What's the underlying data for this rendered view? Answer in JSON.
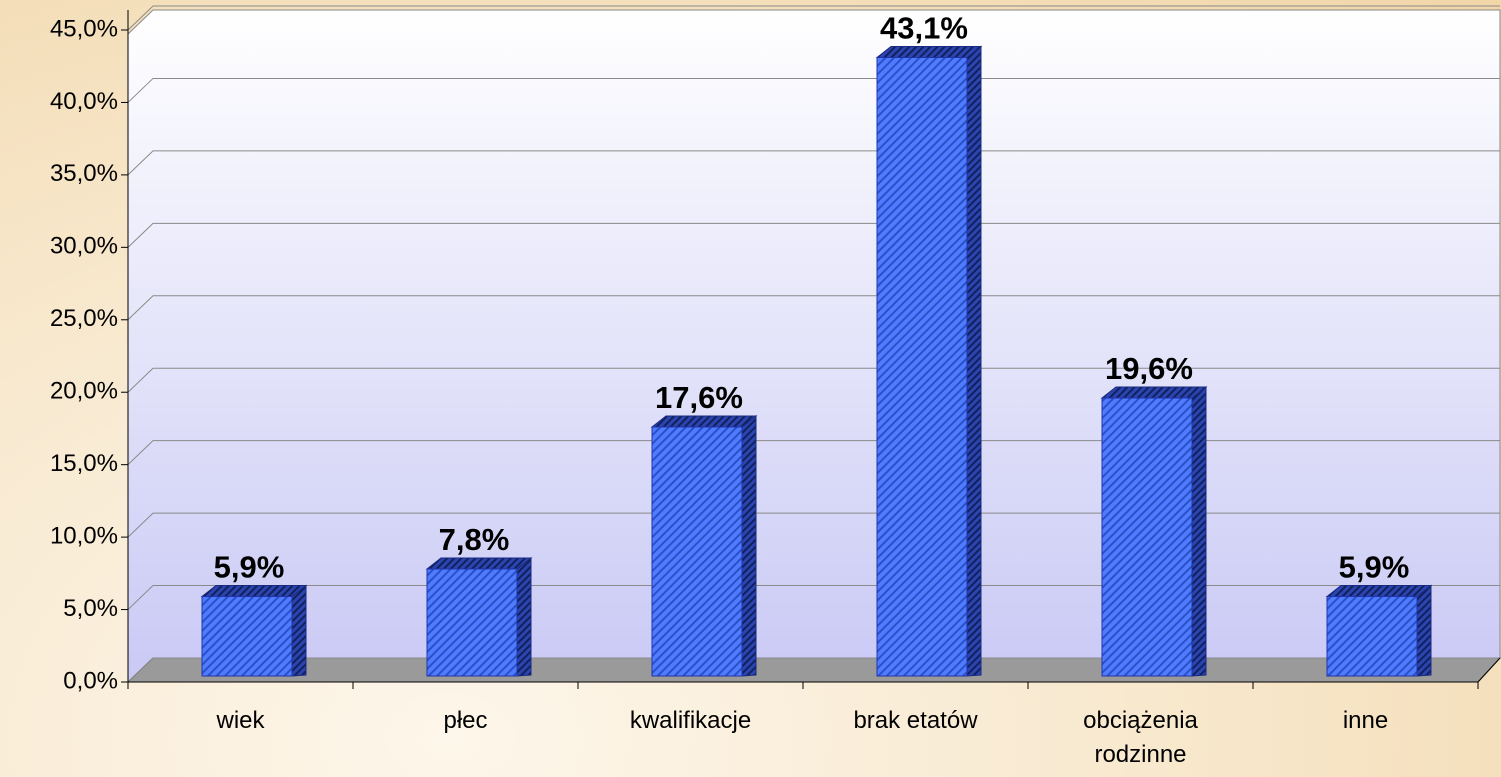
{
  "chart_data": {
    "type": "bar",
    "categories": [
      "wiek",
      "płec",
      "kwalifikacje",
      "brak etatów",
      "obciążenia rodzinne",
      "inne"
    ],
    "values": [
      5.9,
      7.8,
      17.6,
      43.1,
      19.6,
      5.9
    ],
    "value_labels": [
      "5,9%",
      "7,8%",
      "17,6%",
      "43,1%",
      "19,6%",
      "5,9%"
    ],
    "color": "#3f6cf2",
    "ylim": [
      0,
      45
    ],
    "yticks": [
      {
        "value": 0,
        "label": "0,0%"
      },
      {
        "value": 5,
        "label": "5,0%"
      },
      {
        "value": 10,
        "label": "10,0%"
      },
      {
        "value": 15,
        "label": "15,0%"
      },
      {
        "value": 20,
        "label": "20,0%"
      },
      {
        "value": 25,
        "label": "25,0%"
      },
      {
        "value": 30,
        "label": "30,0%"
      },
      {
        "value": 35,
        "label": "35,0%"
      },
      {
        "value": 40,
        "label": "40,0%"
      },
      {
        "value": 45,
        "label": "45,0%"
      }
    ],
    "grid": true
  }
}
